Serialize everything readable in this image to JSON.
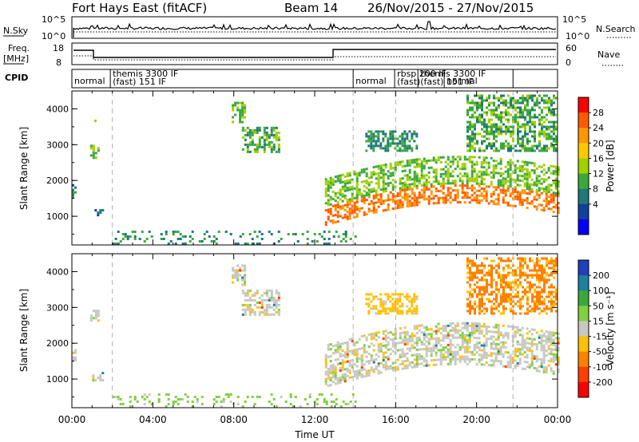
{
  "header": {
    "radar": "Fort Hays East (fitACF)",
    "beam": "Beam 14",
    "date_range": "26/Nov/2015 - 27/Nov/2015"
  },
  "noise_panel": {
    "label": "N.Sky",
    "left_ticks": [
      "10^5",
      "10^0"
    ],
    "right_ticks": [
      "10^5",
      "10^0"
    ],
    "right_label": "N.Search"
  },
  "freq_panel": {
    "label_lines": [
      "Freq.",
      "[MHz]"
    ],
    "left_ticks": [
      "18",
      "8"
    ],
    "right_ticks": [
      "60",
      "0"
    ],
    "right_label": "Nave"
  },
  "cpid_panel": {
    "label": "CPID",
    "entries": [
      {
        "t": 0.0,
        "line1": "normal",
        "line2": ""
      },
      {
        "t": 1.9,
        "line1": "themis 3300 IF",
        "line2": "(fast) 151 IF"
      },
      {
        "t": 13.9,
        "line1": "normal",
        "line2": ""
      },
      {
        "t": 15.95,
        "line1": "rbsp 200 IF",
        "line2": "(fast)"
      },
      {
        "t": 17.1,
        "line1": "themis 3300 IF",
        "line2": "(fast) 151 IF"
      },
      {
        "t": 18.4,
        "line1": "normal",
        "line2": ""
      },
      {
        "t": 21.8,
        "line1": "",
        "line2": ""
      }
    ],
    "overlap_text": "normal(fast)",
    "fast_text": "151 IF"
  },
  "colors": {
    "dashed_line": "#b0b0b0",
    "axis": "#000000",
    "ground_gray": "#c8c8c0"
  },
  "chart_data": [
    {
      "type": "heatmap",
      "name": "power",
      "xlabel": "Time UT",
      "ylabel": "Slant Range [km]",
      "xlim": [
        0,
        24
      ],
      "ylim": [
        200,
        4500
      ],
      "x_ticks": [
        "00:00",
        "04:00",
        "08:00",
        "12:00",
        "16:00",
        "20:00",
        "00:00"
      ],
      "y_ticks": [
        1000,
        2000,
        3000,
        4000
      ],
      "colorbar": {
        "label": "Power [dB]",
        "ticks": [
          "28",
          "24",
          "20",
          "16",
          "12",
          "8",
          "4"
        ],
        "colors": [
          "#ff0000",
          "#ff5a00",
          "#ff9600",
          "#ffc800",
          "#a0d000",
          "#3ca83c",
          "#207878",
          "#1040a0",
          "#0000ff"
        ]
      },
      "vertical_markers": [
        2.0,
        13.9,
        16.0,
        21.8
      ],
      "patches": [
        {
          "t0": 0.0,
          "t1": 0.2,
          "r0": 1500,
          "r1": 1900,
          "value": 8
        },
        {
          "t0": 0.9,
          "t1": 1.3,
          "r0": 2600,
          "r1": 3000,
          "value": 14
        },
        {
          "t0": 1.0,
          "t1": 1.5,
          "r0": 1000,
          "r1": 1200,
          "value": 8
        },
        {
          "t0": 1.1,
          "t1": 1.2,
          "r0": 3500,
          "r1": 3700,
          "value": 12
        },
        {
          "t0": 7.9,
          "t1": 8.5,
          "r0": 3600,
          "r1": 4200,
          "value": 14
        },
        {
          "t0": 8.4,
          "t1": 10.2,
          "r0": 2800,
          "r1": 3500,
          "value": 12
        },
        {
          "t0": 12.5,
          "t1": 24.0,
          "r0": 1100,
          "r1": 1600,
          "value": 26
        },
        {
          "t0": 12.5,
          "t1": 24.0,
          "r0": 1600,
          "r1": 2400,
          "value": 14
        },
        {
          "t0": 14.5,
          "t1": 17.0,
          "r0": 2800,
          "r1": 3400,
          "value": 10
        },
        {
          "t0": 19.5,
          "t1": 24.0,
          "r0": 2800,
          "r1": 4400,
          "value": 12
        },
        {
          "t0": 2.0,
          "t1": 14.0,
          "r0": 250,
          "r1": 600,
          "value": 10
        }
      ]
    },
    {
      "type": "heatmap",
      "name": "velocity",
      "xlabel": "Time UT",
      "ylabel": "Slant Range [km]",
      "xlim": [
        0,
        24
      ],
      "ylim": [
        200,
        4500
      ],
      "x_ticks": [
        "00:00",
        "04:00",
        "08:00",
        "12:00",
        "16:00",
        "20:00",
        "00:00"
      ],
      "y_ticks": [
        1000,
        2000,
        3000,
        4000
      ],
      "colorbar": {
        "label": "Velocity [m s⁻¹]",
        "ticks": [
          "200",
          "100",
          "50",
          "15",
          "-15",
          "-50",
          "-100",
          "-200"
        ],
        "colors": [
          "#2040c0",
          "#2080a0",
          "#3ca83c",
          "#80d040",
          "#c8c8c0",
          "#ffc000",
          "#ff8000",
          "#ff4000",
          "#ff0000"
        ]
      },
      "vertical_markers": [
        2.0,
        13.9,
        16.0,
        21.8
      ],
      "patches": [
        {
          "t0": 0.0,
          "t1": 0.2,
          "r0": 1500,
          "r1": 1900,
          "value": 0
        },
        {
          "t0": 0.9,
          "t1": 1.3,
          "r0": 2600,
          "r1": 3000,
          "value": 0
        },
        {
          "t0": 1.0,
          "t1": 1.5,
          "r0": 950,
          "r1": 1200,
          "value": 0
        },
        {
          "t0": 7.9,
          "t1": 8.5,
          "r0": 3600,
          "r1": 4200,
          "value": 0
        },
        {
          "t0": 8.4,
          "t1": 10.2,
          "r0": 2800,
          "r1": 3500,
          "value": 0
        },
        {
          "t0": 12.5,
          "t1": 24.0,
          "r0": 1100,
          "r1": 2300,
          "value": 0
        },
        {
          "t0": 14.5,
          "t1": 17.0,
          "r0": 2800,
          "r1": 3400,
          "value": -30
        },
        {
          "t0": 19.5,
          "t1": 24.0,
          "r0": 2800,
          "r1": 4400,
          "value": -60
        },
        {
          "t0": 2.0,
          "t1": 14.0,
          "r0": 250,
          "r1": 600,
          "value": 30
        }
      ]
    }
  ]
}
